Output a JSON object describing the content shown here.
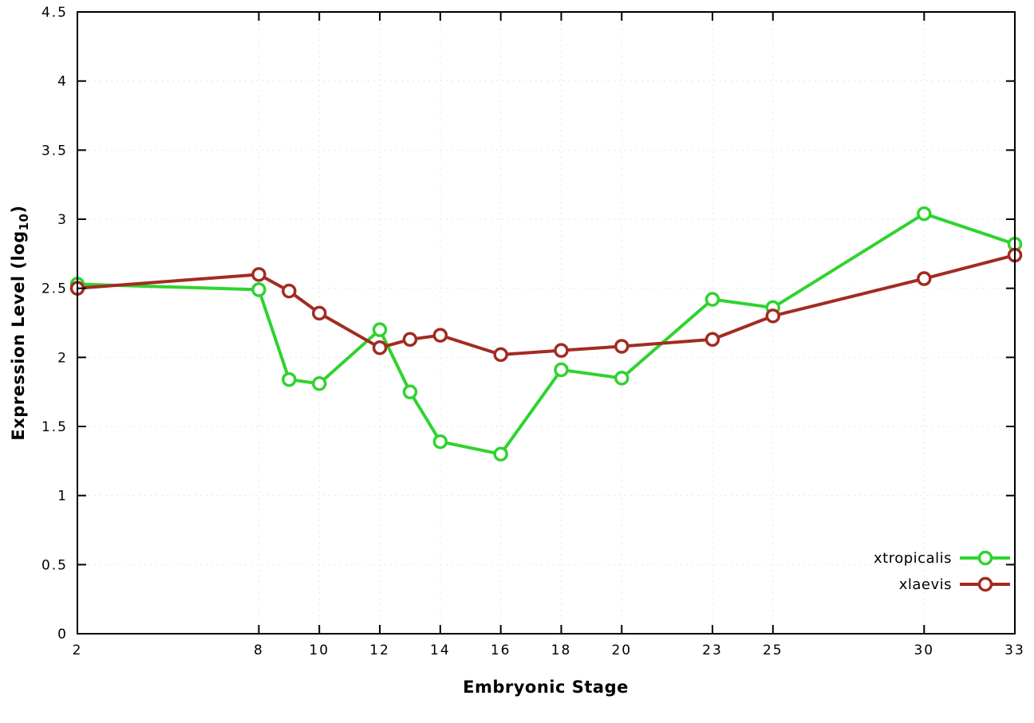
{
  "chart_data": {
    "type": "line",
    "title": "",
    "xlabel": "Embryonic Stage",
    "ylabel": "Expression Level (log10)",
    "ylabel_rich": {
      "pre": "Expression Level (log",
      "sub": "10",
      "post": ")"
    },
    "xlim": [
      2,
      33
    ],
    "ylim": [
      0,
      4.5
    ],
    "x_ticks": [
      2,
      8,
      10,
      12,
      14,
      16,
      18,
      20,
      23,
      25,
      30,
      33
    ],
    "x_tick_labels": [
      "2",
      "8",
      "10",
      "12",
      "14",
      "16",
      "18",
      "20",
      "23",
      "25",
      "30",
      "33"
    ],
    "y_ticks": [
      0,
      0.5,
      1,
      1.5,
      2,
      2.5,
      3,
      3.5,
      4,
      4.5
    ],
    "y_tick_labels": [
      "0",
      "0.5",
      "1",
      "1.5",
      "2",
      "2.5",
      "3",
      "3.5",
      "4",
      "4.5"
    ],
    "grid": true,
    "legend_position": "inside-bottom-right",
    "x": [
      2,
      8,
      9,
      10,
      12,
      13,
      14,
      16,
      18,
      20,
      23,
      25,
      30,
      33
    ],
    "series": [
      {
        "name": "xtropicalis",
        "color": "#2fd32f",
        "values": [
          2.53,
          2.49,
          1.84,
          1.81,
          2.2,
          1.75,
          1.39,
          1.3,
          1.91,
          1.85,
          2.42,
          2.36,
          3.04,
          2.82
        ]
      },
      {
        "name": "xlaevis",
        "color": "#a22b21",
        "values": [
          2.5,
          2.6,
          2.48,
          2.32,
          2.07,
          2.13,
          2.16,
          2.02,
          2.05,
          2.08,
          2.13,
          2.3,
          2.57,
          2.74
        ]
      }
    ]
  },
  "colors": {
    "border": "#000000",
    "grid": "#e6e6e6",
    "marker_fill": "#ffffff"
  }
}
